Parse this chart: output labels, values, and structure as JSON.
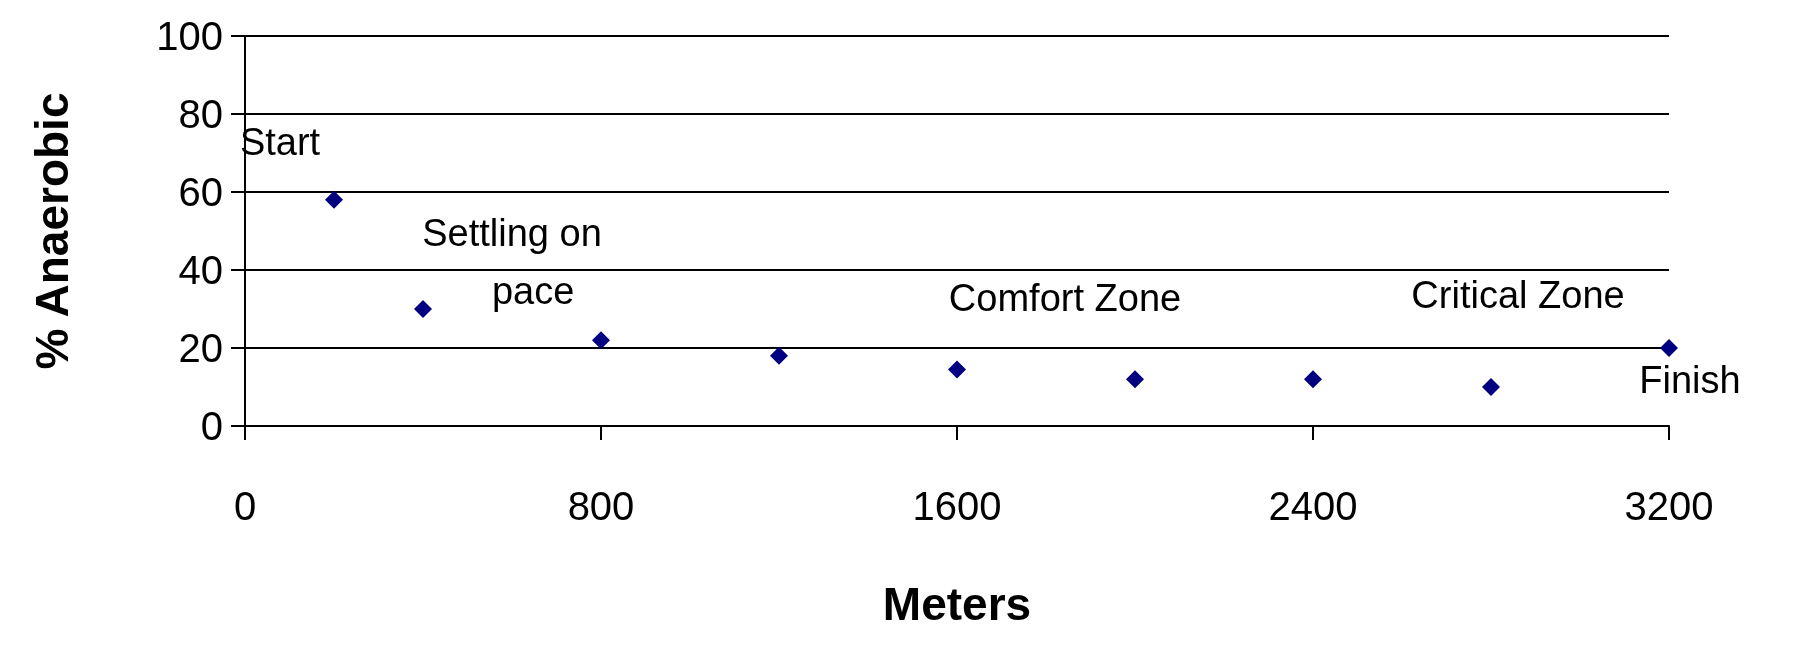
{
  "chart_data": {
    "type": "scatter",
    "xlabel": "Meters",
    "ylabel": "% Anaerobic",
    "x": [
      200,
      400,
      800,
      1200,
      1600,
      2000,
      2400,
      2800,
      3200
    ],
    "series": [
      {
        "color": "#000080",
        "values": [
          58,
          30,
          22,
          18,
          14.5,
          12,
          12,
          10,
          20
        ]
      }
    ],
    "xlim": [
      0,
      3200
    ],
    "xticks": [
      0,
      800,
      1600,
      2400,
      3200
    ],
    "ylim": [
      0,
      100
    ],
    "yticks": [
      0,
      20,
      40,
      60,
      80,
      100
    ],
    "grid": "y",
    "marker": "diamond",
    "annotations": [
      "Start",
      "Settling on\n    pace",
      "Comfort Zone",
      "Critical Zone",
      "Finish"
    ]
  }
}
